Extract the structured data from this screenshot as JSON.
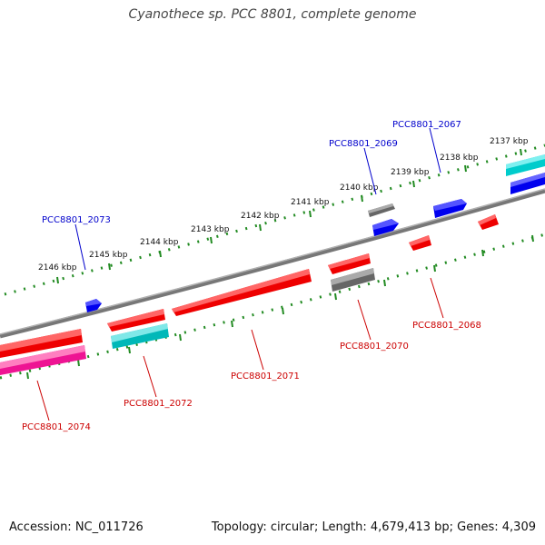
{
  "title": "Cyanothece sp. PCC 8801, complete genome",
  "footer": {
    "accession": "Accession: NC_011726",
    "topology": "Topology: circular; Length: 4,679,413 bp; Genes: 4,309"
  },
  "colors": {
    "forward_gene": "#0000ee",
    "reverse_gene": "#ee0000",
    "cyan_gene": "#00cccc",
    "grey_gene": "#666666",
    "magenta_gene": "#ee1493",
    "ticks": "#228b22",
    "axis": "#888888"
  },
  "scale_labels": [
    "2137 kbp",
    "2138 kbp",
    "2139 kbp",
    "2140 kbp",
    "2141 kbp",
    "2142 kbp",
    "2143 kbp",
    "2144 kbp",
    "2145 kbp",
    "2146 kbp"
  ],
  "gene_labels": {
    "forward": [
      "PCC8801_2067",
      "PCC8801_2069",
      "PCC8801_2073"
    ],
    "reverse": [
      "PCC8801_2068",
      "PCC8801_2070",
      "PCC8801_2071",
      "PCC8801_2072",
      "PCC8801_2074"
    ]
  }
}
